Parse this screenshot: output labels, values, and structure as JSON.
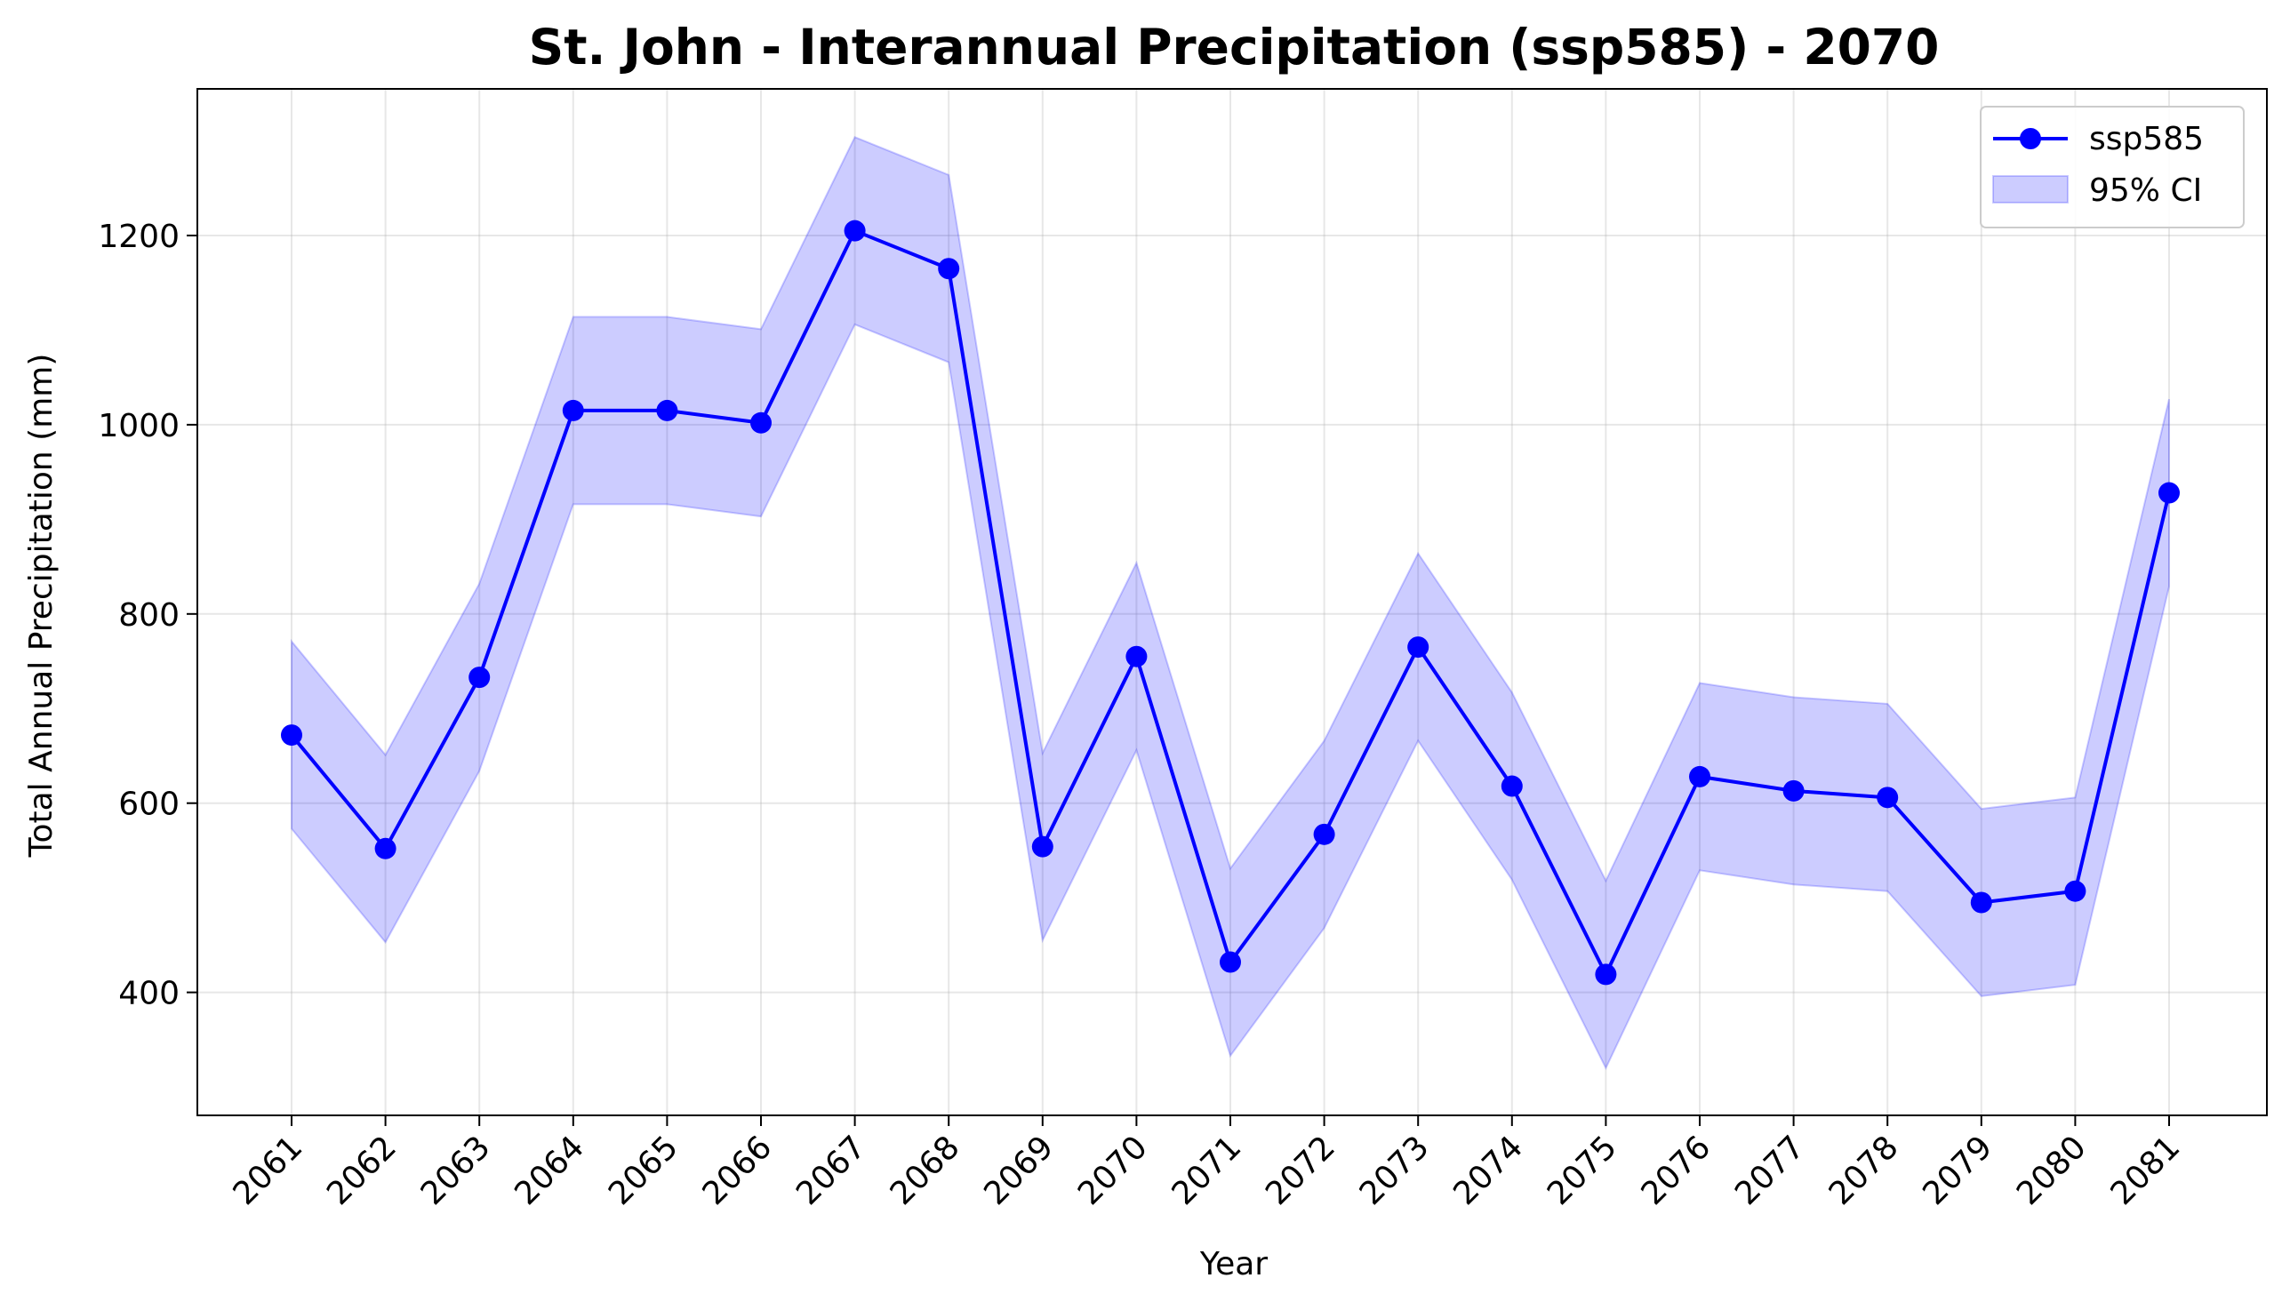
{
  "chart_data": {
    "type": "line",
    "title": "St. John - Interannual Precipitation (ssp585) - 2070",
    "xlabel": "Year",
    "ylabel": "Total Annual Precipitation (mm)",
    "x": [
      "2061",
      "2062",
      "2063",
      "2064",
      "2065",
      "2066",
      "2067",
      "2068",
      "2069",
      "2070",
      "2071",
      "2072",
      "2073",
      "2074",
      "2075",
      "2076",
      "2077",
      "2078",
      "2079",
      "2080",
      "2081"
    ],
    "series": [
      {
        "name": "ssp585",
        "color": "#0000ff",
        "values": [
          672,
          552,
          733,
          1015,
          1015,
          1002,
          1205,
          1165,
          554,
          755,
          432,
          567,
          765,
          618,
          419,
          628,
          613,
          606,
          495,
          507,
          928
        ]
      }
    ],
    "ci": {
      "name": "95% CI",
      "color": "#0000ff",
      "lower": [
        573,
        453,
        634,
        916,
        916,
        903,
        1106,
        1066,
        455,
        656,
        333,
        468,
        666,
        519,
        320,
        529,
        514,
        507,
        396,
        408,
        829
      ],
      "upper": [
        771,
        651,
        832,
        1114,
        1114,
        1101,
        1304,
        1264,
        653,
        854,
        531,
        666,
        864,
        717,
        518,
        727,
        712,
        705,
        594,
        606,
        1027
      ]
    },
    "yticks": [
      400,
      600,
      800,
      1000,
      1200
    ],
    "ylim": [
      270,
      1355
    ],
    "grid": true,
    "legend_position": "top-right"
  }
}
